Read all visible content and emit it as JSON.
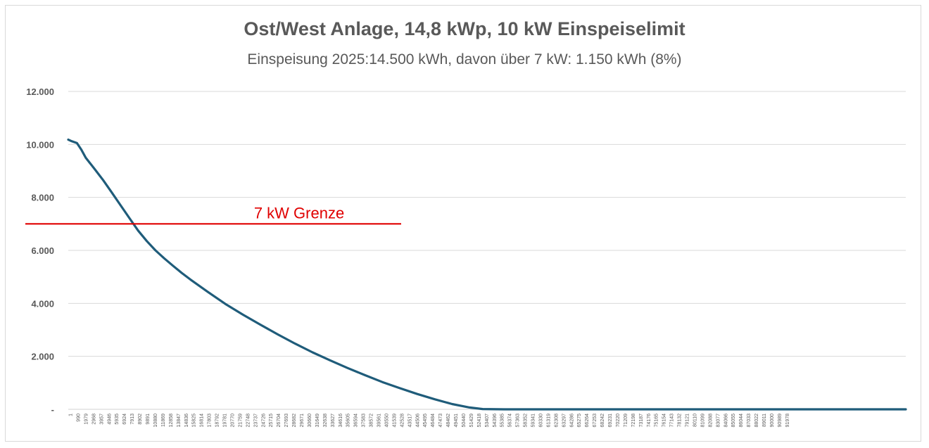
{
  "chart_data": {
    "type": "line",
    "title": "Ost/West Anlage, 14,8 kWp, 10 kW Einspeiselimit",
    "subtitle": "Einspeisung 2025:14.500 kWh, davon über 7 kW: 1.150 kWh (8%)",
    "xlabel": "",
    "ylabel": "",
    "ylim": [
      0,
      12000
    ],
    "y_ticks": [
      {
        "value": 0,
        "label": "-"
      },
      {
        "value": 2000,
        "label": "2.000"
      },
      {
        "value": 4000,
        "label": "4.000"
      },
      {
        "value": 6000,
        "label": "6.000"
      },
      {
        "value": 8000,
        "label": "8.000"
      },
      {
        "value": 10000,
        "label": "10.000"
      },
      {
        "value": 12000,
        "label": "12.000"
      }
    ],
    "x_range": [
      1,
      96000
    ],
    "x_tick_labels": [
      "1",
      "990",
      "1979",
      "2968",
      "3957",
      "4946",
      "5935",
      "6924",
      "7913",
      "8902",
      "9891",
      "10880",
      "11869",
      "12858",
      "13847",
      "14836",
      "15825",
      "16814",
      "17803",
      "18792",
      "19781",
      "20770",
      "21759",
      "22748",
      "23737",
      "24726",
      "25715",
      "26704",
      "27693",
      "28682",
      "29671",
      "30660",
      "31649",
      "32638",
      "33627",
      "34616",
      "35605",
      "36594",
      "37583",
      "38572",
      "39561",
      "40550",
      "41539",
      "42528",
      "43517",
      "44506",
      "45495",
      "46484",
      "47473",
      "48462",
      "49451",
      "50440",
      "51429",
      "52418",
      "53407",
      "54396",
      "55385",
      "56374",
      "57363",
      "58352",
      "59341",
      "60330",
      "61319",
      "62308",
      "63297",
      "64286",
      "65275",
      "66264",
      "67253",
      "68242",
      "69231",
      "70220",
      "71209",
      "72198",
      "73187",
      "74176",
      "75165",
      "76154",
      "77143",
      "78132",
      "79121",
      "80110",
      "81099",
      "82088",
      "83077",
      "84066",
      "85055",
      "86044",
      "87033",
      "88022",
      "89011",
      "90000",
      "90989",
      "91978"
    ],
    "grid": true,
    "legend": "none",
    "series": [
      {
        "color": "#1f5c7a",
        "x": [
          1,
          400,
          990,
          1500,
          2000,
          3000,
          4000,
          5000,
          6000,
          7000,
          8000,
          9000,
          10000,
          11000,
          12000,
          13000,
          14000,
          16000,
          18000,
          20000,
          22000,
          24000,
          26000,
          28000,
          30000,
          32000,
          34000,
          36000,
          38000,
          40000,
          42000,
          44000,
          46000,
          47500,
          50000,
          60000,
          70000,
          80000,
          90000,
          96000
        ],
        "y": [
          10180,
          10120,
          10050,
          9800,
          9500,
          9080,
          8650,
          8180,
          7700,
          7220,
          6750,
          6350,
          6000,
          5700,
          5420,
          5150,
          4900,
          4430,
          3980,
          3580,
          3200,
          2830,
          2480,
          2150,
          1850,
          1560,
          1290,
          1030,
          800,
          580,
          380,
          200,
          70,
          10,
          0,
          0,
          0,
          0,
          0,
          0
        ]
      }
    ],
    "annotations": [
      {
        "text": "7 kW Grenze",
        "y": 7000,
        "color": "#e00000"
      }
    ]
  }
}
